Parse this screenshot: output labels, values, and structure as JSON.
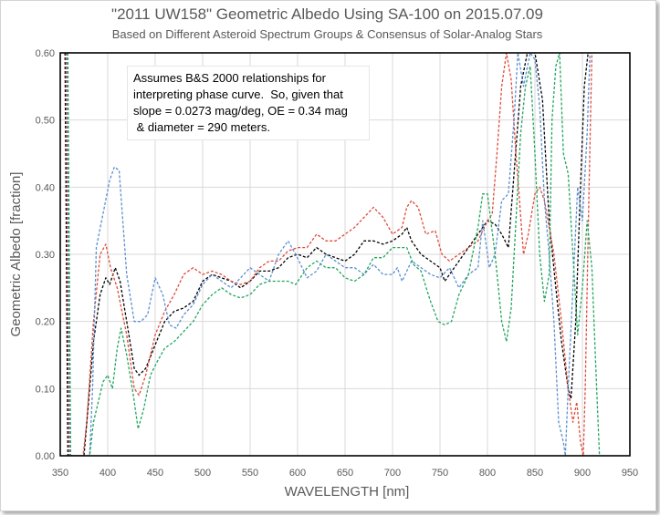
{
  "chart_data": {
    "type": "line",
    "title": "\"2011 UW158\" Geometric Albedo Using SA-100 on 2015.07.09",
    "subtitle": "Based on Different Asteroid Spectrum Groups & Consensus of Solar-Analog Stars",
    "xlabel": "WAVELENGTH [nm]",
    "ylabel": "Geometric Albedo [fraction]",
    "xlim": [
      350,
      950
    ],
    "ylim": [
      0,
      0.6
    ],
    "x_ticks": [
      "350",
      "400",
      "450",
      "500",
      "550",
      "600",
      "650",
      "700",
      "750",
      "800",
      "850",
      "900",
      "950"
    ],
    "y_ticks": [
      "0.00",
      "0.10",
      "0.20",
      "0.30",
      "0.40",
      "0.50",
      "0.60"
    ],
    "grid": true,
    "legend": "none",
    "annotation": [
      "Assumes B&S 2000 relationships for",
      "interpreting phase curve.  So, given that",
      "slope = 0.0273 mag/deg, OE = 0.34 mag",
      " & diameter = 290 meters."
    ],
    "series": [
      {
        "color": "#000000",
        "points": [
          [
            355,
            0.6
          ],
          [
            358,
            0
          ],
          [
            375,
            0
          ],
          [
            378,
            0.05
          ],
          [
            385,
            0.17
          ],
          [
            392,
            0.24
          ],
          [
            398,
            0.265
          ],
          [
            402,
            0.255
          ],
          [
            408,
            0.28
          ],
          [
            413,
            0.26
          ],
          [
            420,
            0.2
          ],
          [
            428,
            0.13
          ],
          [
            433,
            0.12
          ],
          [
            440,
            0.13
          ],
          [
            450,
            0.165
          ],
          [
            460,
            0.2
          ],
          [
            470,
            0.215
          ],
          [
            480,
            0.22
          ],
          [
            490,
            0.23
          ],
          [
            500,
            0.26
          ],
          [
            510,
            0.27
          ],
          [
            520,
            0.265
          ],
          [
            530,
            0.26
          ],
          [
            540,
            0.25
          ],
          [
            550,
            0.26
          ],
          [
            560,
            0.275
          ],
          [
            570,
            0.275
          ],
          [
            580,
            0.28
          ],
          [
            590,
            0.295
          ],
          [
            600,
            0.3
          ],
          [
            610,
            0.295
          ],
          [
            620,
            0.31
          ],
          [
            630,
            0.3
          ],
          [
            640,
            0.295
          ],
          [
            650,
            0.29
          ],
          [
            660,
            0.3
          ],
          [
            670,
            0.32
          ],
          [
            680,
            0.32
          ],
          [
            690,
            0.315
          ],
          [
            700,
            0.32
          ],
          [
            710,
            0.33
          ],
          [
            715,
            0.34
          ],
          [
            720,
            0.32
          ],
          [
            730,
            0.3
          ],
          [
            740,
            0.29
          ],
          [
            750,
            0.28
          ],
          [
            755,
            0.26
          ],
          [
            765,
            0.28
          ],
          [
            775,
            0.3
          ],
          [
            785,
            0.32
          ],
          [
            795,
            0.34
          ],
          [
            800,
            0.35
          ],
          [
            808,
            0.345
          ],
          [
            815,
            0.33
          ],
          [
            822,
            0.31
          ],
          [
            828,
            0.42
          ],
          [
            835,
            0.55
          ],
          [
            842,
            0.6
          ],
          [
            850,
            0.6
          ],
          [
            858,
            0.53
          ],
          [
            865,
            0.35
          ],
          [
            872,
            0.25
          ],
          [
            878,
            0.17
          ],
          [
            885,
            0.1
          ],
          [
            888,
            0.085
          ],
          [
            893,
            0.2
          ],
          [
            898,
            0.4
          ],
          [
            902,
            0.55
          ],
          [
            906,
            0.6
          ]
        ]
      },
      {
        "color": "#e04a3a",
        "points": [
          [
            356,
            0.6
          ],
          [
            359,
            0
          ],
          [
            374,
            0
          ],
          [
            378,
            0.05
          ],
          [
            385,
            0.2
          ],
          [
            392,
            0.3
          ],
          [
            398,
            0.315
          ],
          [
            403,
            0.28
          ],
          [
            410,
            0.25
          ],
          [
            420,
            0.18
          ],
          [
            428,
            0.1
          ],
          [
            433,
            0.09
          ],
          [
            440,
            0.12
          ],
          [
            450,
            0.18
          ],
          [
            460,
            0.215
          ],
          [
            470,
            0.24
          ],
          [
            480,
            0.27
          ],
          [
            490,
            0.28
          ],
          [
            500,
            0.27
          ],
          [
            510,
            0.275
          ],
          [
            520,
            0.27
          ],
          [
            530,
            0.26
          ],
          [
            540,
            0.255
          ],
          [
            550,
            0.26
          ],
          [
            560,
            0.28
          ],
          [
            570,
            0.29
          ],
          [
            580,
            0.29
          ],
          [
            590,
            0.305
          ],
          [
            600,
            0.31
          ],
          [
            610,
            0.31
          ],
          [
            620,
            0.33
          ],
          [
            630,
            0.32
          ],
          [
            640,
            0.32
          ],
          [
            650,
            0.33
          ],
          [
            660,
            0.34
          ],
          [
            670,
            0.355
          ],
          [
            680,
            0.37
          ],
          [
            690,
            0.355
          ],
          [
            700,
            0.33
          ],
          [
            710,
            0.34
          ],
          [
            715,
            0.37
          ],
          [
            720,
            0.38
          ],
          [
            727,
            0.37
          ],
          [
            735,
            0.33
          ],
          [
            745,
            0.335
          ],
          [
            752,
            0.3
          ],
          [
            760,
            0.29
          ],
          [
            770,
            0.3
          ],
          [
            780,
            0.31
          ],
          [
            790,
            0.32
          ],
          [
            800,
            0.35
          ],
          [
            805,
            0.36
          ],
          [
            810,
            0.45
          ],
          [
            815,
            0.55
          ],
          [
            820,
            0.6
          ],
          [
            825,
            0.56
          ],
          [
            830,
            0.45
          ],
          [
            838,
            0.3
          ],
          [
            843,
            0.33
          ],
          [
            850,
            0.39
          ],
          [
            855,
            0.4
          ],
          [
            860,
            0.38
          ],
          [
            870,
            0.3
          ],
          [
            878,
            0.2
          ],
          [
            885,
            0.1
          ],
          [
            890,
            0.05
          ],
          [
            894,
            0.08
          ],
          [
            898,
            0.02
          ],
          [
            901,
            0
          ],
          [
            903,
            0.1
          ],
          [
            907,
            0.4
          ],
          [
            910,
            0.6
          ]
        ]
      },
      {
        "color": "#5b8fd0",
        "points": [
          [
            357,
            0.6
          ],
          [
            360,
            0
          ],
          [
            381,
            0
          ],
          [
            384,
            0.1
          ],
          [
            388,
            0.31
          ],
          [
            395,
            0.36
          ],
          [
            402,
            0.41
          ],
          [
            407,
            0.43
          ],
          [
            412,
            0.425
          ],
          [
            420,
            0.27
          ],
          [
            428,
            0.2
          ],
          [
            435,
            0.2
          ],
          [
            442,
            0.21
          ],
          [
            450,
            0.265
          ],
          [
            458,
            0.24
          ],
          [
            465,
            0.195
          ],
          [
            472,
            0.19
          ],
          [
            480,
            0.21
          ],
          [
            490,
            0.225
          ],
          [
            500,
            0.255
          ],
          [
            510,
            0.27
          ],
          [
            520,
            0.26
          ],
          [
            530,
            0.25
          ],
          [
            540,
            0.265
          ],
          [
            550,
            0.28
          ],
          [
            560,
            0.27
          ],
          [
            570,
            0.26
          ],
          [
            580,
            0.3
          ],
          [
            590,
            0.32
          ],
          [
            598,
            0.3
          ],
          [
            610,
            0.265
          ],
          [
            620,
            0.275
          ],
          [
            630,
            0.3
          ],
          [
            640,
            0.29
          ],
          [
            650,
            0.28
          ],
          [
            660,
            0.28
          ],
          [
            670,
            0.27
          ],
          [
            680,
            0.285
          ],
          [
            690,
            0.27
          ],
          [
            700,
            0.27
          ],
          [
            705,
            0.28
          ],
          [
            710,
            0.26
          ],
          [
            720,
            0.29
          ],
          [
            730,
            0.28
          ],
          [
            740,
            0.27
          ],
          [
            750,
            0.265
          ],
          [
            760,
            0.28
          ],
          [
            770,
            0.25
          ],
          [
            780,
            0.27
          ],
          [
            790,
            0.28
          ],
          [
            795,
            0.35
          ],
          [
            802,
            0.28
          ],
          [
            808,
            0.3
          ],
          [
            815,
            0.38
          ],
          [
            822,
            0.39
          ],
          [
            828,
            0.5
          ],
          [
            832,
            0.6
          ],
          [
            838,
            0.55
          ],
          [
            845,
            0.6
          ],
          [
            850,
            0.59
          ],
          [
            855,
            0.52
          ],
          [
            860,
            0.38
          ],
          [
            865,
            0.3
          ],
          [
            870,
            0.2
          ],
          [
            875,
            0.05
          ],
          [
            880,
            0.02
          ],
          [
            882,
            0
          ],
          [
            885,
            0.1
          ],
          [
            890,
            0.25
          ],
          [
            895,
            0.4
          ],
          [
            900,
            0.35
          ],
          [
            905,
            0.48
          ],
          [
            908,
            0.6
          ]
        ]
      },
      {
        "color": "#22a55e",
        "points": [
          [
            358,
            0.6
          ],
          [
            361,
            0
          ],
          [
            381,
            0
          ],
          [
            385,
            0.05
          ],
          [
            395,
            0.11
          ],
          [
            400,
            0.12
          ],
          [
            405,
            0.1
          ],
          [
            410,
            0.16
          ],
          [
            414,
            0.19
          ],
          [
            420,
            0.15
          ],
          [
            427,
            0.09
          ],
          [
            432,
            0.04
          ],
          [
            438,
            0.07
          ],
          [
            445,
            0.12
          ],
          [
            452,
            0.14
          ],
          [
            460,
            0.16
          ],
          [
            470,
            0.17
          ],
          [
            480,
            0.185
          ],
          [
            490,
            0.2
          ],
          [
            500,
            0.225
          ],
          [
            510,
            0.24
          ],
          [
            520,
            0.25
          ],
          [
            530,
            0.24
          ],
          [
            540,
            0.235
          ],
          [
            550,
            0.24
          ],
          [
            560,
            0.255
          ],
          [
            570,
            0.26
          ],
          [
            580,
            0.26
          ],
          [
            590,
            0.26
          ],
          [
            598,
            0.255
          ],
          [
            610,
            0.28
          ],
          [
            620,
            0.29
          ],
          [
            630,
            0.28
          ],
          [
            640,
            0.28
          ],
          [
            650,
            0.265
          ],
          [
            660,
            0.26
          ],
          [
            670,
            0.27
          ],
          [
            680,
            0.295
          ],
          [
            690,
            0.295
          ],
          [
            700,
            0.31
          ],
          [
            710,
            0.31
          ],
          [
            715,
            0.31
          ],
          [
            722,
            0.285
          ],
          [
            730,
            0.275
          ],
          [
            740,
            0.23
          ],
          [
            748,
            0.2
          ],
          [
            755,
            0.195
          ],
          [
            762,
            0.2
          ],
          [
            770,
            0.24
          ],
          [
            780,
            0.27
          ],
          [
            790,
            0.34
          ],
          [
            795,
            0.39
          ],
          [
            800,
            0.39
          ],
          [
            808,
            0.3
          ],
          [
            815,
            0.2
          ],
          [
            820,
            0.17
          ],
          [
            825,
            0.22
          ],
          [
            830,
            0.35
          ],
          [
            835,
            0.48
          ],
          [
            840,
            0.55
          ],
          [
            845,
            0.58
          ],
          [
            850,
            0.45
          ],
          [
            855,
            0.3
          ],
          [
            860,
            0.23
          ],
          [
            865,
            0.27
          ],
          [
            868,
            0.5
          ],
          [
            872,
            0.58
          ],
          [
            876,
            0.6
          ],
          [
            880,
            0.45
          ],
          [
            885,
            0.42
          ],
          [
            890,
            0.3
          ],
          [
            895,
            0.18
          ],
          [
            900,
            0.25
          ],
          [
            905,
            0.35
          ],
          [
            910,
            0.28
          ],
          [
            915,
            0.1
          ],
          [
            918,
            0
          ]
        ]
      }
    ]
  }
}
